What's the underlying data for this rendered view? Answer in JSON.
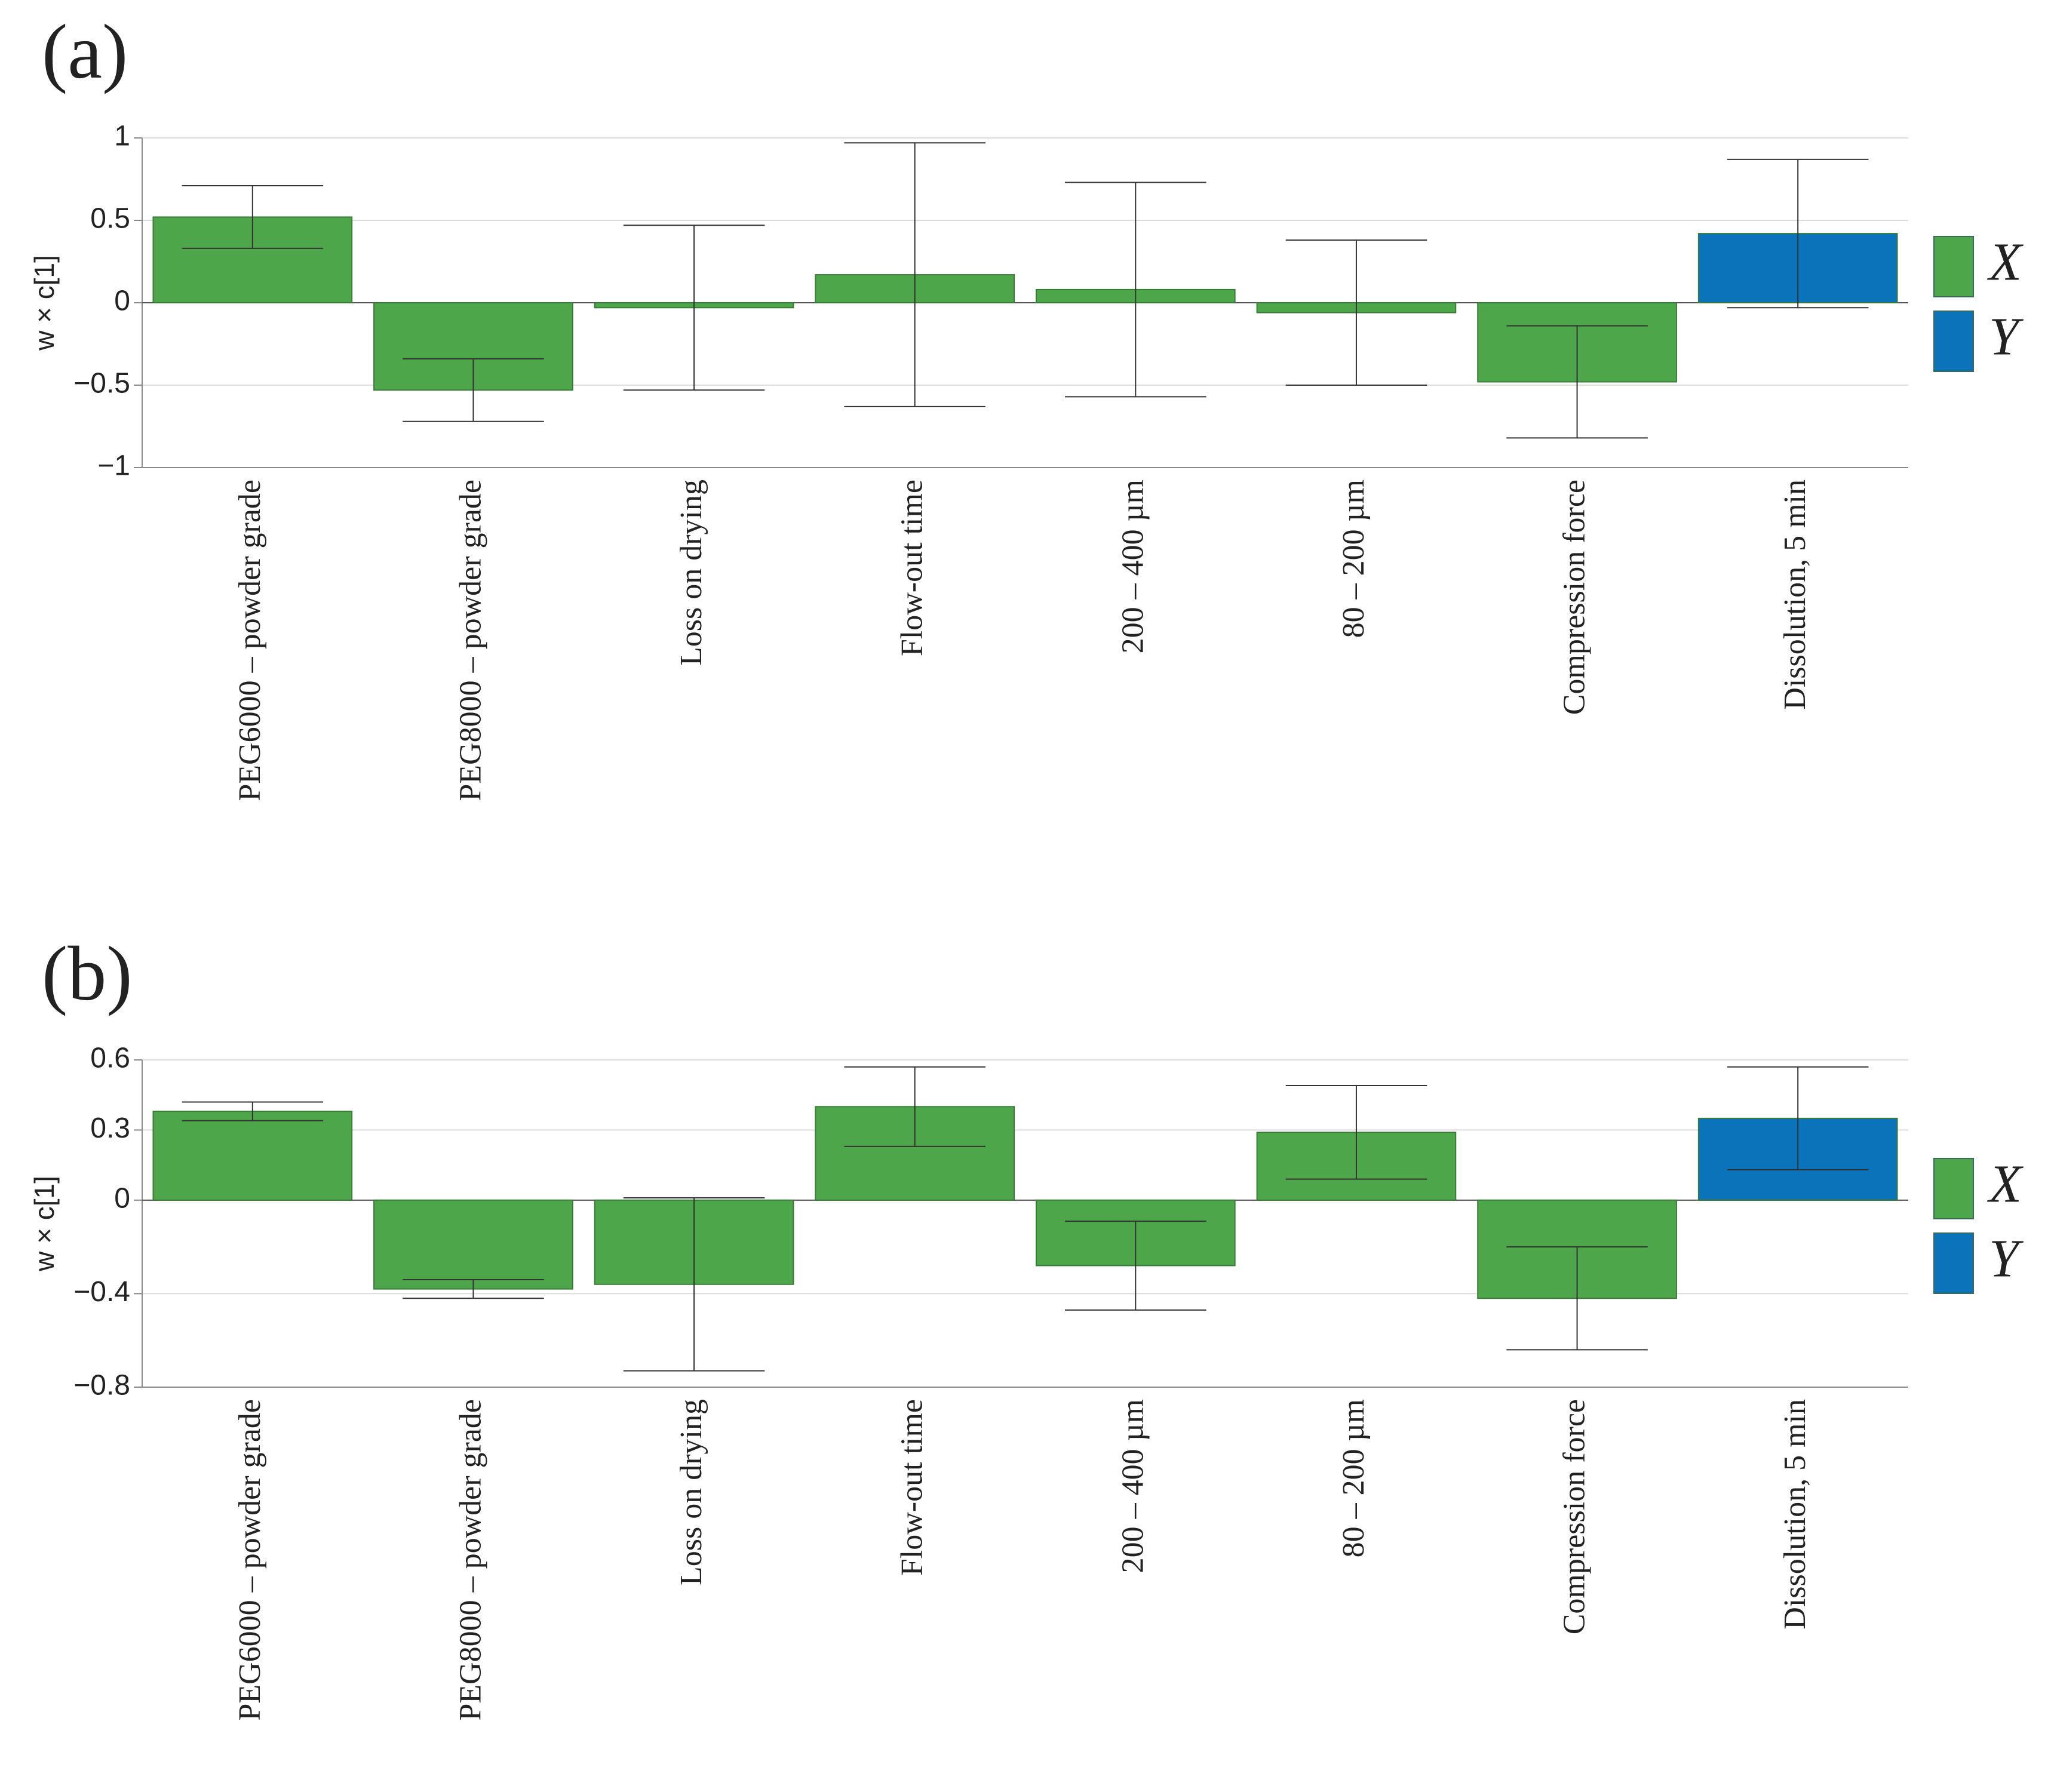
{
  "chart_data": [
    {
      "type": "bar",
      "panel_label": "(a)",
      "y_label": "w × c[1]",
      "categories": [
        "PEG6000 – powder grade",
        "PEG8000 – powder grade",
        "Loss on drying",
        "Flow-out time",
        "200 – 400 µm",
        "80 – 200 µm",
        "Compression force",
        "Dissolution, 5 min"
      ],
      "values": [
        0.52,
        -0.53,
        -0.03,
        0.17,
        0.08,
        -0.06,
        -0.48,
        0.42
      ],
      "errors": [
        0.19,
        0.19,
        0.5,
        0.8,
        0.65,
        0.44,
        0.34,
        0.45
      ],
      "colors": [
        "#4ea64a",
        "#4ea64a",
        "#4ea64a",
        "#4ea64a",
        "#4ea64a",
        "#4ea64a",
        "#4ea64a",
        "#0a73b9"
      ],
      "legend": [
        {
          "name": "X",
          "color": "#4ea64a"
        },
        {
          "name": "Y",
          "color": "#0a73b9"
        }
      ],
      "ylim": [
        -1,
        1
      ],
      "yticks": [
        {
          "value": -1,
          "label": "−1"
        },
        {
          "value": -0.5,
          "label": "−0.5"
        },
        0,
        0.5,
        1
      ],
      "grid": true
    },
    {
      "type": "bar",
      "panel_label": "(b)",
      "y_label": "w × c[1]",
      "categories": [
        "PEG6000 – powder grade",
        "PEG8000 – powder grade",
        "Loss on drying",
        "Flow-out time",
        "200 – 400 µm",
        "80 – 200 µm",
        "Compression force",
        "Dissolution, 5 min"
      ],
      "values": [
        0.38,
        -0.38,
        -0.36,
        0.4,
        -0.28,
        0.29,
        -0.42,
        0.35
      ],
      "errors": [
        0.04,
        0.04,
        0.37,
        0.17,
        0.19,
        0.2,
        0.22,
        0.22
      ],
      "colors": [
        "#4ea64a",
        "#4ea64a",
        "#4ea64a",
        "#4ea64a",
        "#4ea64a",
        "#4ea64a",
        "#4ea64a",
        "#0a73b9"
      ],
      "legend": [
        {
          "name": "X",
          "color": "#4ea64a"
        },
        {
          "name": "Y",
          "color": "#0a73b9"
        }
      ],
      "ylim": [
        -0.8,
        0.6
      ],
      "yticks": [
        {
          "value": -0.8,
          "label": "−0.8"
        },
        {
          "value": -0.4,
          "label": "−0.4"
        },
        0,
        0.3,
        0.6
      ],
      "grid": true
    }
  ]
}
